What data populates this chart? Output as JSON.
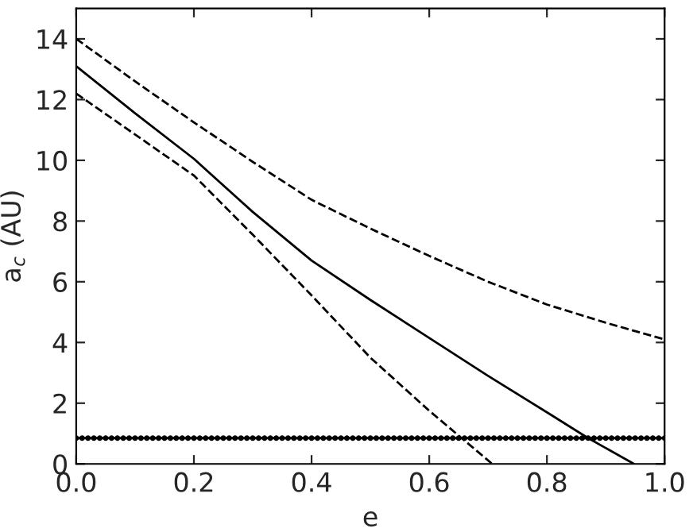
{
  "chart_data": {
    "type": "line",
    "xlabel": "e",
    "ylabel": "a$_{c}$ (AU)",
    "xlim": [
      0,
      1
    ],
    "ylim": [
      0,
      15
    ],
    "xticks": [
      {
        "value": 0,
        "label": "0.0"
      },
      0.2,
      0.4,
      0.6,
      0.8,
      {
        "value": 1,
        "label": "1.0"
      }
    ],
    "yticks": [
      0,
      2,
      4,
      6,
      8,
      10,
      12,
      14
    ],
    "grid": false,
    "legend": false,
    "series": [
      {
        "color": "#000000",
        "line_style": "solid",
        "marker": "none",
        "x": [
          0,
          0.1,
          0.2,
          0.3,
          0.4,
          0.5,
          0.6,
          0.7,
          0.8,
          0.87,
          0.948
        ],
        "values": [
          13.1,
          11.55,
          10.05,
          8.3,
          6.7,
          5.4,
          4.15,
          2.9,
          1.7,
          0.85,
          0
        ]
      },
      {
        "color": "#000000",
        "line_style": "dashed",
        "marker": "none",
        "x": [
          0,
          0.1,
          0.2,
          0.3,
          0.4,
          0.5,
          0.6,
          0.7,
          0.8,
          0.9,
          1.0
        ],
        "values": [
          14.0,
          12.6,
          11.25,
          9.95,
          8.7,
          7.75,
          6.85,
          6.0,
          5.25,
          4.65,
          4.1
        ]
      },
      {
        "color": "#000000",
        "line_style": "dashed",
        "marker": "none",
        "x": [
          0,
          0.1,
          0.2,
          0.3,
          0.4,
          0.5,
          0.6,
          0.655,
          0.707
        ],
        "values": [
          12.2,
          10.85,
          9.5,
          7.55,
          5.55,
          3.5,
          1.75,
          0.85,
          0
        ]
      },
      {
        "color": "#000000",
        "line_style": "solid",
        "marker": "circle",
        "x": [
          0,
          0.01,
          0.02,
          0.03,
          0.04,
          0.05,
          0.06,
          0.07,
          0.08,
          0.09,
          0.1,
          0.11,
          0.12,
          0.13,
          0.14,
          0.15,
          0.16,
          0.17,
          0.18,
          0.19,
          0.2,
          0.21,
          0.22,
          0.23,
          0.24,
          0.25,
          0.26,
          0.27,
          0.28,
          0.29,
          0.3,
          0.31,
          0.32,
          0.33,
          0.34,
          0.35,
          0.36,
          0.37,
          0.38,
          0.39,
          0.4,
          0.41,
          0.42,
          0.43,
          0.44,
          0.45,
          0.46,
          0.47,
          0.48,
          0.49,
          0.5,
          0.51,
          0.52,
          0.53,
          0.54,
          0.55,
          0.56,
          0.57,
          0.58,
          0.59,
          0.6,
          0.61,
          0.62,
          0.63,
          0.64,
          0.65,
          0.66,
          0.67,
          0.68,
          0.69,
          0.7,
          0.71,
          0.72,
          0.73,
          0.74,
          0.75,
          0.76,
          0.77,
          0.78,
          0.79,
          0.8,
          0.81,
          0.82,
          0.83,
          0.84,
          0.85,
          0.86,
          0.87,
          0.88,
          0.89,
          0.9,
          0.91,
          0.92,
          0.93,
          0.94,
          0.95,
          0.96,
          0.97,
          0.98,
          0.99,
          1.0
        ],
        "values": [
          0.85,
          0.85,
          0.85,
          0.85,
          0.85,
          0.85,
          0.85,
          0.85,
          0.85,
          0.85,
          0.85,
          0.85,
          0.85,
          0.85,
          0.85,
          0.85,
          0.85,
          0.85,
          0.85,
          0.85,
          0.85,
          0.85,
          0.85,
          0.85,
          0.85,
          0.85,
          0.85,
          0.85,
          0.85,
          0.85,
          0.85,
          0.85,
          0.85,
          0.85,
          0.85,
          0.85,
          0.85,
          0.85,
          0.85,
          0.85,
          0.85,
          0.85,
          0.85,
          0.85,
          0.85,
          0.85,
          0.85,
          0.85,
          0.85,
          0.85,
          0.85,
          0.85,
          0.85,
          0.85,
          0.85,
          0.85,
          0.85,
          0.85,
          0.85,
          0.85,
          0.85,
          0.85,
          0.85,
          0.85,
          0.85,
          0.85,
          0.85,
          0.85,
          0.85,
          0.85,
          0.85,
          0.85,
          0.85,
          0.85,
          0.85,
          0.85,
          0.85,
          0.85,
          0.85,
          0.85,
          0.85,
          0.85,
          0.85,
          0.85,
          0.85,
          0.85,
          0.85,
          0.85,
          0.85,
          0.85,
          0.85,
          0.85,
          0.85,
          0.85,
          0.85,
          0.85,
          0.85,
          0.85,
          0.85,
          0.85,
          0.85
        ]
      }
    ]
  }
}
